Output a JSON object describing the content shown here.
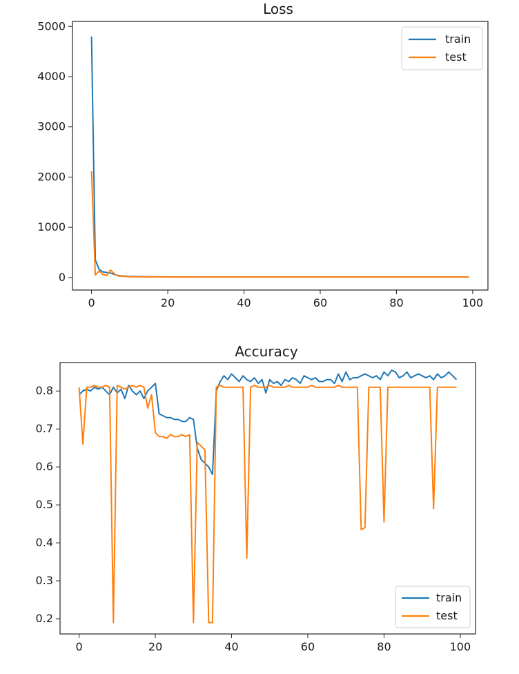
{
  "colors": {
    "train": "#1f77b4",
    "test": "#ff7f0e",
    "axis": "#222222"
  },
  "chart_data": [
    {
      "type": "line",
      "title": "Loss",
      "xlabel": "",
      "ylabel": "",
      "xlim": [
        -5,
        104
      ],
      "ylim": [
        -250,
        5100
      ],
      "xticks": [
        0,
        20,
        40,
        60,
        80,
        100
      ],
      "yticks": [
        0,
        1000,
        2000,
        3000,
        4000,
        5000
      ],
      "legend": "upper right",
      "series": [
        {
          "name": "train",
          "x": [
            0,
            1,
            2,
            3,
            4,
            5,
            6,
            7,
            8,
            9,
            10,
            15,
            20,
            30,
            40,
            50,
            60,
            70,
            80,
            90,
            99
          ],
          "y": [
            4800,
            350,
            160,
            110,
            100,
            90,
            60,
            40,
            30,
            25,
            20,
            15,
            12,
            10,
            10,
            10,
            10,
            10,
            10,
            10,
            10
          ]
        },
        {
          "name": "test",
          "x": [
            0,
            1,
            2,
            3,
            4,
            5,
            6,
            7,
            8,
            9,
            10,
            15,
            20,
            30,
            40,
            50,
            60,
            70,
            80,
            90,
            99
          ],
          "y": [
            2120,
            50,
            130,
            60,
            40,
            150,
            70,
            30,
            25,
            20,
            15,
            12,
            10,
            10,
            10,
            10,
            10,
            10,
            10,
            10,
            10
          ]
        }
      ]
    },
    {
      "type": "line",
      "title": "Accuracy",
      "xlabel": "",
      "ylabel": "",
      "xlim": [
        -5,
        104
      ],
      "ylim": [
        0.16,
        0.875
      ],
      "xticks": [
        0,
        20,
        40,
        60,
        80,
        100
      ],
      "yticks": [
        0.2,
        0.3,
        0.4,
        0.5,
        0.6,
        0.7,
        0.8
      ],
      "legend": "lower right",
      "series": [
        {
          "name": "train",
          "x": [
            0,
            1,
            2,
            3,
            4,
            5,
            6,
            7,
            8,
            9,
            10,
            11,
            12,
            13,
            14,
            15,
            16,
            17,
            18,
            19,
            20,
            21,
            22,
            23,
            24,
            25,
            26,
            27,
            28,
            29,
            30,
            31,
            32,
            33,
            34,
            35,
            36,
            37,
            38,
            39,
            40,
            41,
            42,
            43,
            44,
            45,
            46,
            47,
            48,
            49,
            50,
            51,
            52,
            53,
            54,
            55,
            56,
            57,
            58,
            59,
            60,
            61,
            62,
            63,
            64,
            65,
            66,
            67,
            68,
            69,
            70,
            71,
            72,
            73,
            74,
            75,
            76,
            77,
            78,
            79,
            80,
            81,
            82,
            83,
            84,
            85,
            86,
            87,
            88,
            89,
            90,
            91,
            92,
            93,
            94,
            95,
            96,
            97,
            98,
            99
          ],
          "y": [
            0.79,
            0.8,
            0.805,
            0.8,
            0.81,
            0.805,
            0.81,
            0.8,
            0.79,
            0.81,
            0.795,
            0.805,
            0.78,
            0.815,
            0.8,
            0.79,
            0.8,
            0.78,
            0.8,
            0.81,
            0.82,
            0.74,
            0.735,
            0.73,
            0.73,
            0.725,
            0.725,
            0.72,
            0.72,
            0.73,
            0.725,
            0.65,
            0.62,
            0.61,
            0.6,
            0.58,
            0.8,
            0.825,
            0.84,
            0.83,
            0.845,
            0.835,
            0.825,
            0.84,
            0.83,
            0.825,
            0.835,
            0.82,
            0.83,
            0.795,
            0.83,
            0.82,
            0.825,
            0.815,
            0.83,
            0.825,
            0.835,
            0.83,
            0.82,
            0.84,
            0.835,
            0.83,
            0.835,
            0.825,
            0.825,
            0.83,
            0.83,
            0.82,
            0.845,
            0.825,
            0.85,
            0.83,
            0.835,
            0.835,
            0.84,
            0.845,
            0.84,
            0.835,
            0.84,
            0.83,
            0.85,
            0.84,
            0.855,
            0.85,
            0.835,
            0.84,
            0.85,
            0.835,
            0.84,
            0.845,
            0.84,
            0.835,
            0.84,
            0.83,
            0.845,
            0.835,
            0.84,
            0.85,
            0.84,
            0.83
          ]
        },
        {
          "name": "test",
          "x": [
            0,
            1,
            2,
            3,
            4,
            5,
            6,
            7,
            8,
            9,
            10,
            11,
            12,
            13,
            14,
            15,
            16,
            17,
            18,
            19,
            20,
            21,
            22,
            23,
            24,
            25,
            26,
            27,
            28,
            29,
            30,
            31,
            32,
            33,
            34,
            35,
            36,
            37,
            38,
            39,
            40,
            41,
            42,
            43,
            44,
            45,
            46,
            47,
            48,
            49,
            50,
            51,
            52,
            53,
            54,
            55,
            56,
            57,
            58,
            59,
            60,
            61,
            62,
            63,
            64,
            65,
            66,
            67,
            68,
            69,
            70,
            71,
            72,
            73,
            74,
            75,
            76,
            77,
            78,
            79,
            80,
            81,
            82,
            83,
            84,
            85,
            86,
            87,
            88,
            89,
            90,
            91,
            92,
            93,
            94,
            95,
            96,
            97,
            98,
            99
          ],
          "y": [
            0.81,
            0.66,
            0.81,
            0.81,
            0.815,
            0.81,
            0.81,
            0.815,
            0.81,
            0.19,
            0.815,
            0.81,
            0.805,
            0.81,
            0.815,
            0.81,
            0.815,
            0.81,
            0.755,
            0.79,
            0.69,
            0.68,
            0.68,
            0.675,
            0.685,
            0.68,
            0.68,
            0.685,
            0.68,
            0.685,
            0.19,
            0.665,
            0.655,
            0.645,
            0.19,
            0.19,
            0.81,
            0.815,
            0.81,
            0.81,
            0.81,
            0.81,
            0.81,
            0.81,
            0.36,
            0.81,
            0.815,
            0.81,
            0.81,
            0.81,
            0.815,
            0.81,
            0.81,
            0.81,
            0.81,
            0.815,
            0.81,
            0.81,
            0.81,
            0.81,
            0.81,
            0.815,
            0.81,
            0.81,
            0.81,
            0.81,
            0.81,
            0.81,
            0.815,
            0.81,
            0.81,
            0.81,
            0.81,
            0.81,
            0.435,
            0.44,
            0.81,
            0.81,
            0.81,
            0.81,
            0.455,
            0.81,
            0.81,
            0.81,
            0.81,
            0.81,
            0.81,
            0.81,
            0.81,
            0.81,
            0.81,
            0.81,
            0.81,
            0.49,
            0.81,
            0.81,
            0.81,
            0.81,
            0.81,
            0.81
          ]
        }
      ]
    }
  ]
}
